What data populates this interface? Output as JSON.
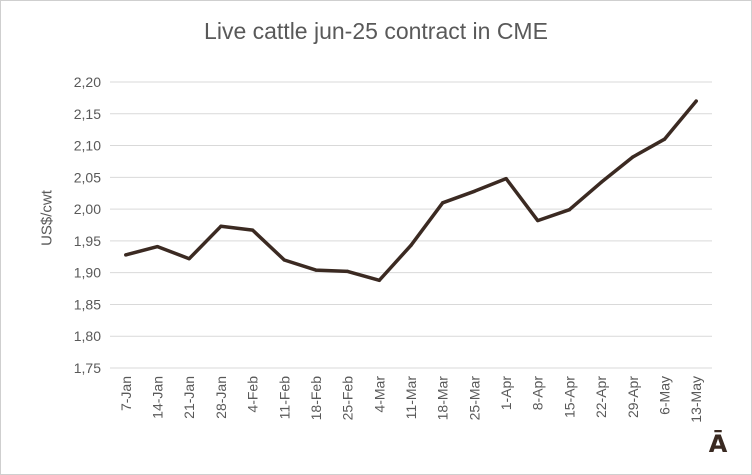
{
  "chart_data": {
    "type": "line",
    "title": "Live cattle jun-25 contract in CME",
    "xlabel": "",
    "ylabel": "US$/cwt",
    "categories": [
      "7-Jan",
      "14-Jan",
      "21-Jan",
      "28-Jan",
      "4-Feb",
      "11-Feb",
      "18-Feb",
      "25-Feb",
      "4-Mar",
      "11-Mar",
      "18-Mar",
      "25-Mar",
      "1-Apr",
      "8-Apr",
      "15-Apr",
      "22-Apr",
      "29-Apr",
      "6-May",
      "13-May"
    ],
    "series": [
      {
        "values": [
          1.928,
          1.941,
          1.922,
          1.973,
          1.967,
          1.92,
          1.904,
          1.902,
          1.888,
          1.943,
          2.01,
          2.028,
          2.048,
          1.982,
          1.999,
          2.042,
          2.082,
          2.11,
          2.17
        ]
      }
    ],
    "ylim": [
      1.75,
      2.2
    ],
    "yticks": [
      "1,75",
      "1,80",
      "1,85",
      "1,90",
      "1,95",
      "2,00",
      "2,05",
      "2,10",
      "2,15",
      "2,20"
    ],
    "grid": true,
    "legend": "none",
    "colors": {
      "line": "#3b2a22",
      "grid": "#d9d9d9",
      "text": "#595959"
    }
  },
  "logo": {
    "text": "Ā"
  }
}
